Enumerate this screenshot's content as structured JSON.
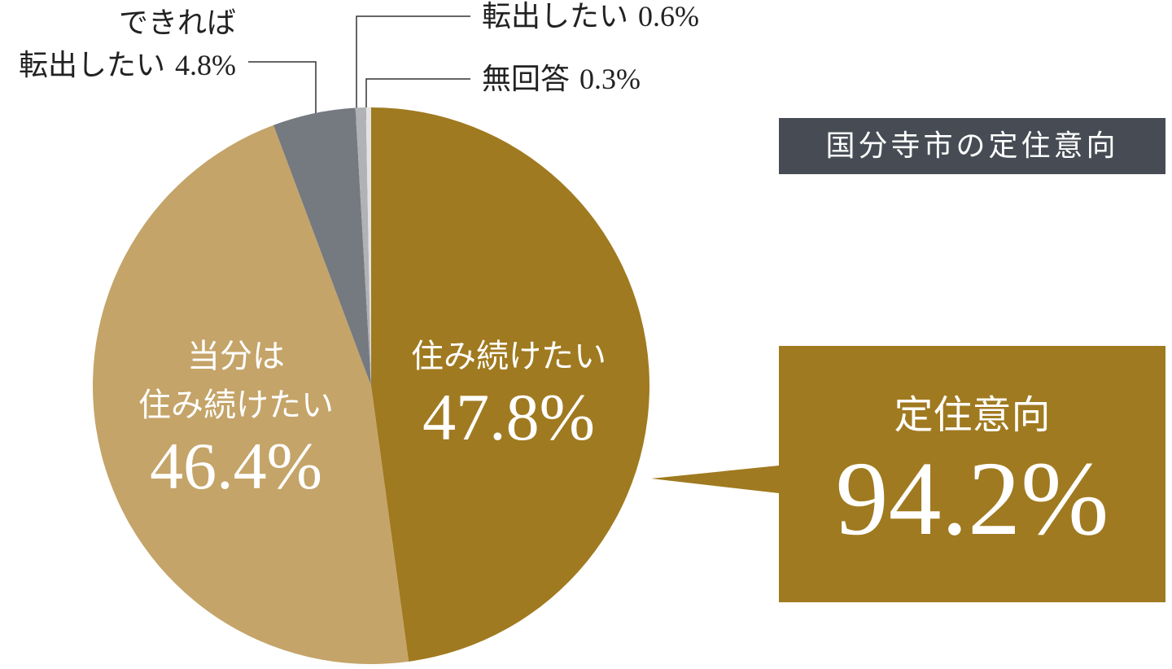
{
  "chart_data": {
    "type": "pie",
    "title": "国分寺市の定住意向",
    "categories": [
      "住み続けたい",
      "当分は\n住み続けたい",
      "できれば\n転出したい",
      "転出したい",
      "無回答"
    ],
    "values": [
      47.8,
      46.4,
      4.8,
      0.6,
      0.3
    ],
    "value_labels": [
      "47.8%",
      "46.4%",
      "4.8%",
      "0.6%",
      "0.3%"
    ],
    "colors": [
      "#a07a20",
      "#c4a469",
      "#757980",
      "#b0b2b5",
      "#e2e2e2"
    ],
    "summary": {
      "label": "定住意向",
      "value": 94.2,
      "value_label": "94.2%"
    }
  }
}
